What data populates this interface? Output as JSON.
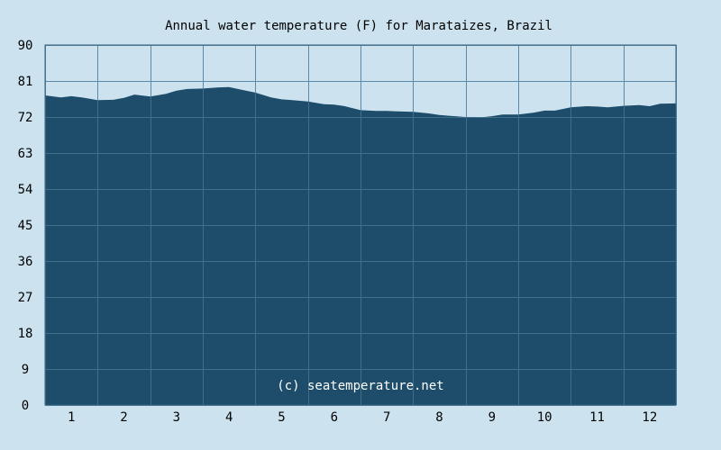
{
  "colors": {
    "background": "#cce3ef",
    "plot_fill": "#1d4d6a",
    "grid": "#5c8aa6",
    "frame": "#2f5f7c",
    "text": "#000000",
    "watermark": "#ffffff"
  },
  "watermark": "(c) seatemperature.net",
  "chart_data": {
    "type": "area",
    "title": "Annual water temperature (F) for Marataizes, Brazil",
    "xlabel": "",
    "ylabel": "",
    "ylim": [
      0,
      90
    ],
    "y_ticks": [
      "0",
      "9",
      "18",
      "27",
      "36",
      "45",
      "54",
      "63",
      "72",
      "81",
      "90"
    ],
    "x_ticks": [
      "1",
      "2",
      "3",
      "4",
      "5",
      "6",
      "7",
      "8",
      "9",
      "10",
      "11",
      "12"
    ],
    "grid": true,
    "legend": "none",
    "x_range": [
      0.5,
      12.5
    ],
    "x": [
      0.5,
      0.8,
      1.0,
      1.2,
      1.5,
      1.8,
      2.0,
      2.2,
      2.5,
      2.8,
      3.0,
      3.2,
      3.5,
      3.8,
      4.0,
      4.2,
      4.5,
      4.8,
      5.0,
      5.2,
      5.5,
      5.8,
      6.0,
      6.2,
      6.5,
      6.8,
      7.0,
      7.2,
      7.5,
      7.8,
      8.0,
      8.2,
      8.5,
      8.8,
      9.0,
      9.2,
      9.5,
      9.8,
      10.0,
      10.2,
      10.5,
      10.8,
      11.0,
      11.2,
      11.5,
      11.8,
      12.0,
      12.2,
      12.5
    ],
    "values": [
      77.4,
      76.9,
      77.2,
      76.9,
      76.2,
      76.3,
      76.8,
      77.6,
      77.1,
      77.8,
      78.6,
      79.0,
      79.1,
      79.4,
      79.5,
      78.9,
      78.1,
      76.9,
      76.4,
      76.2,
      75.9,
      75.2,
      75.1,
      74.7,
      73.7,
      73.5,
      73.5,
      73.4,
      73.3,
      72.9,
      72.5,
      72.3,
      72.0,
      71.9,
      72.2,
      72.6,
      72.6,
      73.1,
      73.6,
      73.6,
      74.4,
      74.7,
      74.6,
      74.4,
      74.8,
      75.0,
      74.7,
      75.3,
      75.4
    ]
  }
}
